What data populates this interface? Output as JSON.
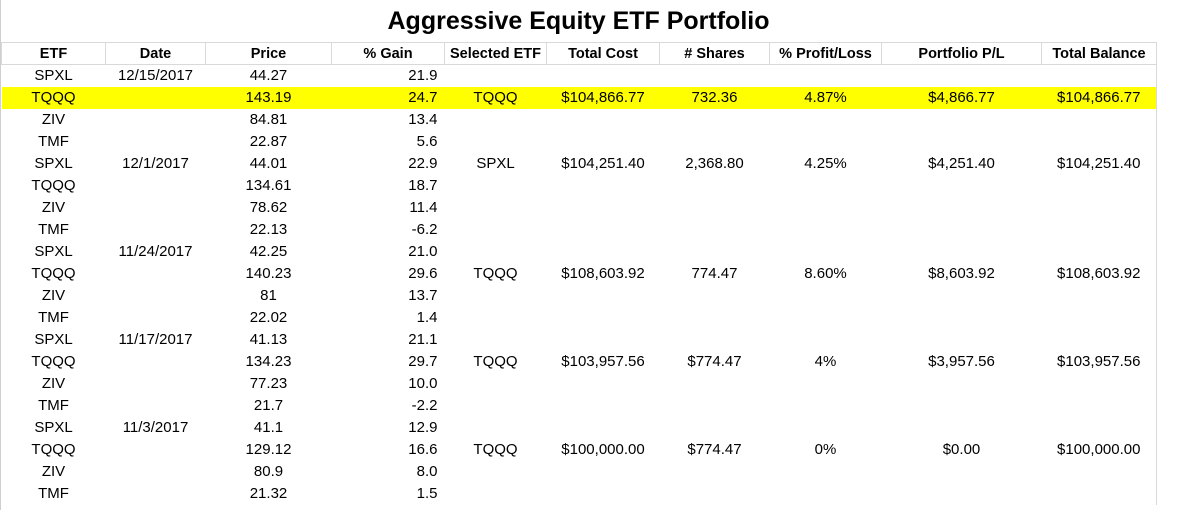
{
  "title": "Aggressive Equity ETF Portfolio",
  "table": {
    "headers": [
      "ETF",
      "Date",
      "Price",
      "% Gain",
      "Selected ETF",
      "Total Cost",
      "# Shares",
      "% Profit/Loss",
      "Portfolio P/L",
      "Total Balance"
    ],
    "highlight_row": 1,
    "highlight_color": "#ffff00",
    "rows": [
      [
        "SPXL",
        "12/15/2017",
        "44.27",
        "21.9",
        "",
        "",
        "",
        "",
        "",
        ""
      ],
      [
        "TQQQ",
        "",
        "143.19",
        "24.7",
        "TQQQ",
        "$104,866.77",
        "732.36",
        "4.87%",
        "$4,866.77",
        "$104,866.77"
      ],
      [
        "ZIV",
        "",
        "84.81",
        "13.4",
        "",
        "",
        "",
        "",
        "",
        ""
      ],
      [
        "TMF",
        "",
        "22.87",
        "5.6",
        "",
        "",
        "",
        "",
        "",
        ""
      ],
      [
        "SPXL",
        "12/1/2017",
        "44.01",
        "22.9",
        "SPXL",
        "$104,251.40",
        "2,368.80",
        "4.25%",
        "$4,251.40",
        "$104,251.40"
      ],
      [
        "TQQQ",
        "",
        "134.61",
        "18.7",
        "",
        "",
        "",
        "",
        "",
        ""
      ],
      [
        "ZIV",
        "",
        "78.62",
        "11.4",
        "",
        "",
        "",
        "",
        "",
        ""
      ],
      [
        "TMF",
        "",
        "22.13",
        "-6.2",
        "",
        "",
        "",
        "",
        "",
        ""
      ],
      [
        "SPXL",
        "11/24/2017",
        "42.25",
        "21.0",
        "",
        "",
        "",
        "",
        "",
        ""
      ],
      [
        "TQQQ",
        "",
        "140.23",
        "29.6",
        "TQQQ",
        "$108,603.92",
        "774.47",
        "8.60%",
        "$8,603.92",
        "$108,603.92"
      ],
      [
        "ZIV",
        "",
        "81",
        "13.7",
        "",
        "",
        "",
        "",
        "",
        ""
      ],
      [
        "TMF",
        "",
        "22.02",
        "1.4",
        "",
        "",
        "",
        "",
        "",
        ""
      ],
      [
        "SPXL",
        "11/17/2017",
        "41.13",
        "21.1",
        "",
        "",
        "",
        "",
        "",
        ""
      ],
      [
        "TQQQ",
        "",
        "134.23",
        "29.7",
        "TQQQ",
        "$103,957.56",
        "$774.47",
        "4%",
        "$3,957.56",
        "$103,957.56"
      ],
      [
        "ZIV",
        "",
        "77.23",
        "10.0",
        "",
        "",
        "",
        "",
        "",
        ""
      ],
      [
        "TMF",
        "",
        "21.7",
        "-2.2",
        "",
        "",
        "",
        "",
        "",
        ""
      ],
      [
        "SPXL",
        "11/3/2017",
        "41.1",
        "12.9",
        "",
        "",
        "",
        "",
        "",
        ""
      ],
      [
        "TQQQ",
        "",
        "129.12",
        "16.6",
        "TQQQ",
        "$100,000.00",
        "$774.47",
        "0%",
        "$0.00",
        "$100,000.00"
      ],
      [
        "ZIV",
        "",
        "80.9",
        "8.0",
        "",
        "",
        "",
        "",
        "",
        ""
      ],
      [
        "TMF",
        "",
        "21.32",
        "1.5",
        "",
        "",
        "",
        "",
        "",
        ""
      ]
    ]
  }
}
